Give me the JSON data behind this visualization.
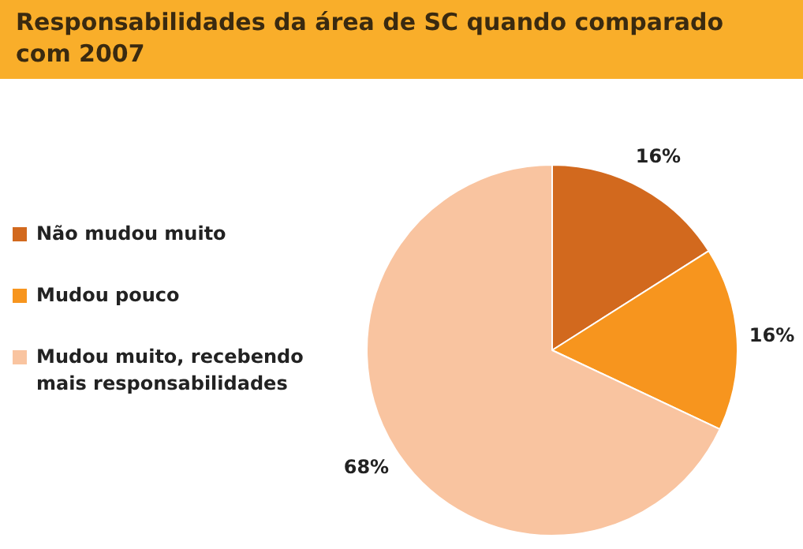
{
  "chart_data": {
    "type": "pie",
    "title": "Responsabilidades da área de SC quando comparado com 2007",
    "categories": [
      "Não mudou muito",
      "Mudou pouco",
      "Mudou muito, recebendo mais responsabilidades"
    ],
    "values": [
      16,
      16,
      68
    ],
    "colors": [
      "#d2691e",
      "#f7951e",
      "#f9c4a0"
    ],
    "value_labels": [
      "16%",
      "16%",
      "68%"
    ],
    "legend": "left"
  }
}
